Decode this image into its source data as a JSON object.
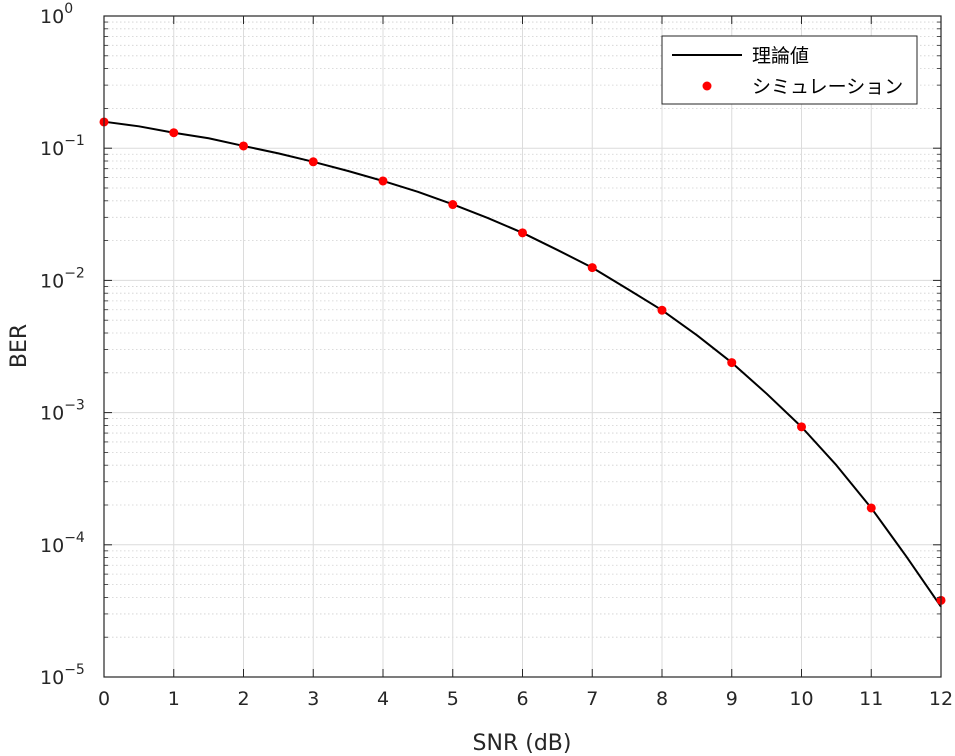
{
  "chart_data": {
    "type": "line",
    "xlabel": "SNR (dB)",
    "ylabel": "BER",
    "x_ticks": [
      0,
      1,
      2,
      3,
      4,
      5,
      6,
      7,
      8,
      9,
      10,
      11,
      12
    ],
    "y_ticks": [
      {
        "value": 1,
        "base": "10",
        "exp": "0"
      },
      {
        "value": 0.1,
        "base": "10",
        "exp": "−1"
      },
      {
        "value": 0.01,
        "base": "10",
        "exp": "−2"
      },
      {
        "value": 0.001,
        "base": "10",
        "exp": "−3"
      },
      {
        "value": 0.0001,
        "base": "10",
        "exp": "−4"
      },
      {
        "value": 1e-05,
        "base": "10",
        "exp": "−5"
      }
    ],
    "xlim": [
      0,
      12
    ],
    "ylim": [
      1e-05,
      1
    ],
    "yscale": "log",
    "grid": true,
    "legend_position": "top-right",
    "series": [
      {
        "name": "理論値",
        "style": "line",
        "color": "#000000",
        "x": [
          0,
          0.5,
          1,
          1.5,
          2,
          2.5,
          3,
          3.5,
          4,
          4.5,
          5,
          5.5,
          6,
          6.5,
          7,
          7.5,
          8,
          8.5,
          9,
          9.5,
          10,
          10.5,
          11,
          11.5,
          12
        ],
        "y": [
          0.1587,
          0.1464,
          0.1309,
          0.1189,
          0.104,
          0.0914,
          0.0789,
          0.0672,
          0.0565,
          0.0468,
          0.0376,
          0.0297,
          0.0229,
          0.017,
          0.0125,
          0.00865,
          0.00595,
          0.00385,
          0.00239,
          0.00139,
          0.00078,
          0.0004,
          0.00019,
          8.2e-05,
          3.4e-05
        ]
      },
      {
        "name": "シミュレーション",
        "style": "marker",
        "color": "#ff0000",
        "x": [
          0,
          1,
          2,
          3,
          4,
          5,
          6,
          7,
          8,
          9,
          10,
          11,
          12
        ],
        "y": [
          0.158,
          0.131,
          0.104,
          0.0789,
          0.0565,
          0.0375,
          0.0229,
          0.0125,
          0.00595,
          0.00239,
          0.00078,
          0.00019,
          3.8e-05
        ]
      }
    ]
  }
}
